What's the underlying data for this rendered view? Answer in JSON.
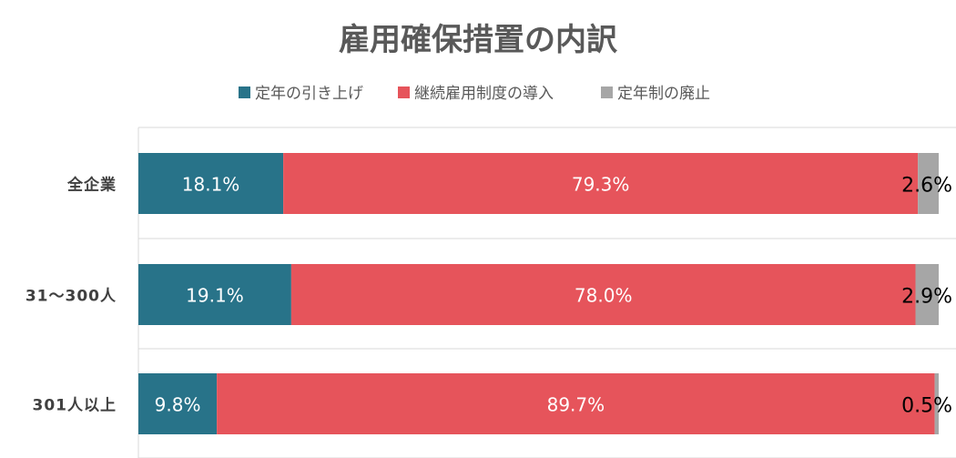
{
  "chart_data": {
    "type": "bar",
    "orientation": "horizontal",
    "stacked": "100%",
    "title": "雇用確保措置の内訳",
    "categories": [
      "全企業",
      "31～300人",
      "301人以上"
    ],
    "series": [
      {
        "name": "定年の引き上げ",
        "color": "#287389",
        "values": [
          18.1,
          19.1,
          9.8
        ],
        "labels": [
          "18.1%",
          "19.1%",
          "9.8%"
        ]
      },
      {
        "name": "継続雇用制度の導入",
        "color": "#E6545B",
        "values": [
          79.3,
          78.0,
          89.7
        ],
        "labels": [
          "79.3%",
          "78.0%",
          "89.7%"
        ]
      },
      {
        "name": "定年制の廃止",
        "color": "#A6A6A6",
        "values": [
          2.6,
          2.9,
          0.5
        ],
        "labels": [
          "2.6%",
          "2.9%",
          "0.5%"
        ]
      }
    ],
    "legend": "top",
    "grid": true
  }
}
